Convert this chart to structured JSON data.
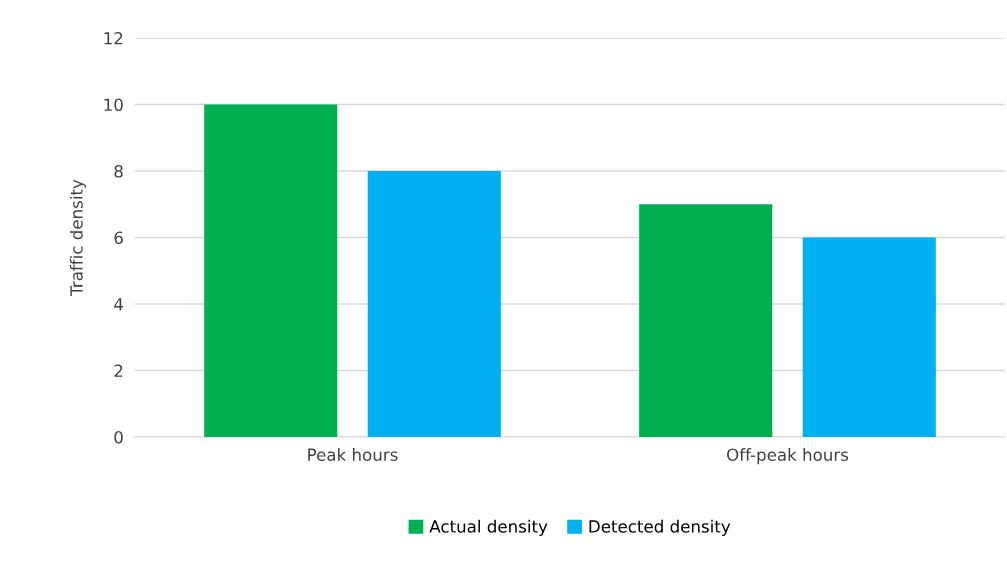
{
  "chart_data": {
    "type": "bar",
    "ylabel": "Traffic density",
    "categories": [
      "Peak hours",
      "Off-peak hours"
    ],
    "series": [
      {
        "name": "Actual density",
        "color": "#00b050",
        "values": [
          10,
          7
        ]
      },
      {
        "name": "Detected density",
        "color": "#00b0f0",
        "values": [
          8,
          6
        ]
      }
    ],
    "ylim": [
      0,
      12
    ],
    "yticks": [
      0,
      2,
      4,
      6,
      8,
      10,
      12
    ],
    "grid": "y",
    "legend": "bottom"
  }
}
